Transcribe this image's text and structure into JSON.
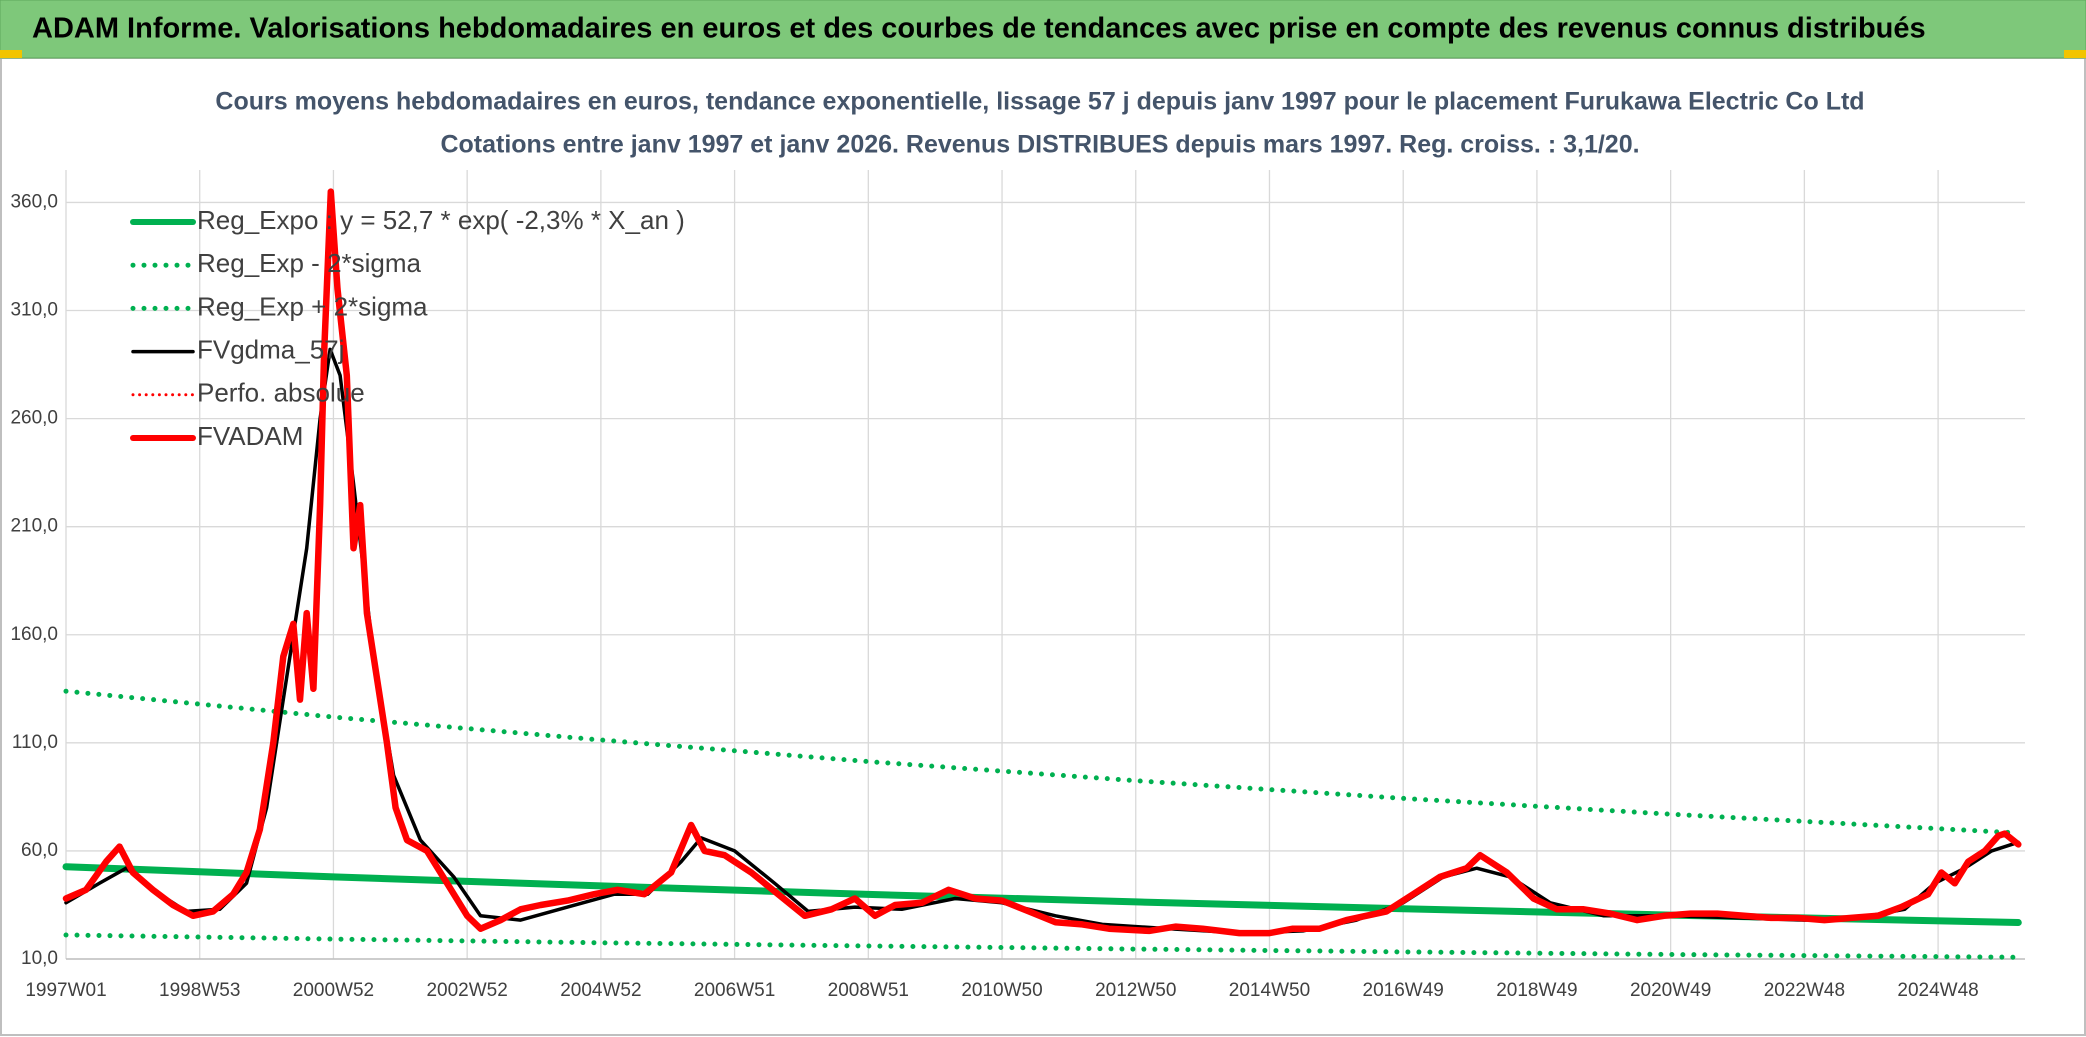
{
  "chart_data": {
    "type": "line",
    "header": "ADAM Informe. Valorisations hebdomadaires en euros et des courbes de tendances avec prise en compte des revenus connus distribués",
    "title": "Cours moyens hebdomadaires en euros, tendance exponentielle, lissage 57 j depuis janv 1997 pour le placement Furukawa Electric Co Ltd",
    "subtitle": "Cotations entre janv 1997 et janv 2026. Revenus DISTRIBUES depuis mars 1997. Reg. croiss. : 3,1/20.",
    "xlim": [
      1997,
      2026.3
    ],
    "xticks": [
      {
        "value": 1997,
        "label": "1997W01"
      },
      {
        "value": 1999,
        "label": "1998W53"
      },
      {
        "value": 2001,
        "label": "2000W52"
      },
      {
        "value": 2003,
        "label": "2002W52"
      },
      {
        "value": 2005,
        "label": "2004W52"
      },
      {
        "value": 2007,
        "label": "2006W51"
      },
      {
        "value": 2009,
        "label": "2008W51"
      },
      {
        "value": 2011,
        "label": "2010W50"
      },
      {
        "value": 2013,
        "label": "2012W50"
      },
      {
        "value": 2015,
        "label": "2014W50"
      },
      {
        "value": 2017,
        "label": "2016W49"
      },
      {
        "value": 2019,
        "label": "2018W49"
      },
      {
        "value": 2021,
        "label": "2020W49"
      },
      {
        "value": 2023,
        "label": "2022W48"
      },
      {
        "value": 2025,
        "label": "2024W48"
      }
    ],
    "ylim": [
      10,
      375
    ],
    "yticks": [
      {
        "value": 10,
        "label": "10,0"
      },
      {
        "value": 60,
        "label": "60,0"
      },
      {
        "value": 110,
        "label": "110,0"
      },
      {
        "value": 160,
        "label": "160,0"
      },
      {
        "value": 210,
        "label": "210,0"
      },
      {
        "value": 260,
        "label": "260,0"
      },
      {
        "value": 310,
        "label": "310,0"
      },
      {
        "value": 360,
        "label": "360,0"
      }
    ],
    "grid": true,
    "legend": "upper left",
    "series": [
      {
        "name": "Reg_Expo : y = 52,7 * exp( -2,3% *  X_an )",
        "color": "#00b050",
        "style": "solid",
        "width": 7,
        "x": [
          1997,
          2001,
          2005,
          2009,
          2013,
          2017,
          2021,
          2026.2
        ],
        "values": [
          52.7,
          48.0,
          43.8,
          39.9,
          36.4,
          33.2,
          30.3,
          26.9
        ]
      },
      {
        "name": "Reg_Exp - 2*sigma",
        "color": "#00b050",
        "style": "dotted",
        "width": 5,
        "x": [
          1997,
          2001,
          2005,
          2009,
          2013,
          2017,
          2021,
          2026.2
        ],
        "values": [
          21.1,
          19.2,
          17.5,
          16.0,
          14.6,
          13.3,
          12.1,
          10.8
        ]
      },
      {
        "name": "Reg_Exp + 2*sigma",
        "color": "#00b050",
        "style": "dotted",
        "width": 5,
        "x": [
          1997,
          2001,
          2005,
          2009,
          2013,
          2017,
          2021,
          2026.2
        ],
        "values": [
          133.9,
          121.9,
          111.3,
          101.3,
          92.5,
          84.3,
          77.0,
          68.3
        ]
      },
      {
        "name": "FVgdma_57j",
        "color": "#000000",
        "style": "solid",
        "width": 3.5,
        "x": [
          1997.0,
          1997.5,
          1997.9,
          1998.3,
          1998.8,
          1999.3,
          1999.7,
          2000.0,
          2000.3,
          2000.6,
          2000.8,
          2000.95,
          2001.1,
          2001.3,
          2001.6,
          2001.9,
          2002.3,
          2002.8,
          2003.2,
          2003.8,
          2004.5,
          2005.2,
          2005.7,
          2006.2,
          2006.5,
          2007.0,
          2007.6,
          2008.1,
          2008.8,
          2009.5,
          2010.3,
          2011.0,
          2011.8,
          2012.5,
          2013.5,
          2014.6,
          2015.5,
          2016.3,
          2017.0,
          2017.6,
          2018.1,
          2018.6,
          2019.2,
          2020.0,
          2021.0,
          2022.0,
          2023.0,
          2023.8,
          2024.5,
          2024.95,
          2025.4,
          2025.8,
          2026.2
        ],
        "values": [
          36,
          45,
          52,
          42,
          32,
          33,
          45,
          80,
          140,
          200,
          260,
          292,
          280,
          230,
          150,
          95,
          65,
          48,
          30,
          28,
          34,
          40,
          40,
          55,
          66,
          60,
          45,
          32,
          34,
          33,
          38,
          36,
          30,
          26,
          24,
          22,
          23,
          28,
          36,
          48,
          52,
          48,
          36,
          30,
          30,
          29,
          28,
          29,
          33,
          45,
          52,
          60,
          64
        ]
      },
      {
        "name": "Perfo. absolue",
        "color": "#ff0000",
        "style": "dotted",
        "width": 3,
        "x": [],
        "values": []
      },
      {
        "name": "FVADAM",
        "color": "#ff0000",
        "style": "solid",
        "width": 6.5,
        "x": [
          1997.0,
          1997.3,
          1997.6,
          1997.8,
          1998.0,
          1998.3,
          1998.6,
          1998.9,
          1999.2,
          1999.5,
          1999.7,
          1999.9,
          2000.1,
          2000.25,
          2000.4,
          2000.5,
          2000.6,
          2000.7,
          2000.8,
          2000.86,
          2000.96,
          2001.06,
          2001.2,
          2001.3,
          2001.4,
          2001.5,
          2001.65,
          2001.8,
          2001.93,
          2002.1,
          2002.4,
          2002.7,
          2003.0,
          2003.2,
          2003.5,
          2003.8,
          2004.1,
          2004.5,
          2004.9,
          2005.25,
          2005.65,
          2006.05,
          2006.35,
          2006.55,
          2006.85,
          2007.25,
          2007.65,
          2008.05,
          2008.45,
          2008.8,
          2009.1,
          2009.4,
          2009.8,
          2010.2,
          2010.6,
          2011.0,
          2011.4,
          2011.8,
          2012.2,
          2012.6,
          2013.2,
          2013.6,
          2014.0,
          2014.55,
          2015.0,
          2015.35,
          2015.75,
          2016.15,
          2016.75,
          2017.15,
          2017.55,
          2017.95,
          2018.15,
          2018.55,
          2018.95,
          2019.3,
          2019.7,
          2020.1,
          2020.5,
          2020.9,
          2021.3,
          2021.7,
          2022.1,
          2022.5,
          2022.9,
          2023.3,
          2023.7,
          2024.1,
          2024.45,
          2024.85,
          2025.05,
          2025.25,
          2025.45,
          2025.7,
          2025.9,
          2026.0,
          2026.2
        ],
        "values": [
          38,
          42,
          55,
          62,
          50,
          42,
          35,
          30,
          32,
          40,
          50,
          70,
          110,
          150,
          165,
          130,
          170,
          135,
          220,
          290,
          365,
          320,
          280,
          200,
          220,
          170,
          140,
          110,
          80,
          65,
          60,
          45,
          30,
          24,
          28,
          33,
          35,
          37,
          40,
          42,
          40,
          50,
          72,
          60,
          58,
          50,
          40,
          30,
          33,
          38,
          30,
          35,
          36,
          42,
          38,
          37,
          32,
          27,
          26,
          24,
          23,
          25,
          24,
          22,
          22,
          24,
          24,
          28,
          32,
          40,
          48,
          52,
          58,
          50,
          38,
          33,
          33,
          31,
          28,
          30,
          31,
          31,
          30,
          29,
          29,
          28,
          29,
          30,
          34,
          40,
          50,
          45,
          55,
          60,
          67,
          68,
          63
        ]
      }
    ]
  }
}
